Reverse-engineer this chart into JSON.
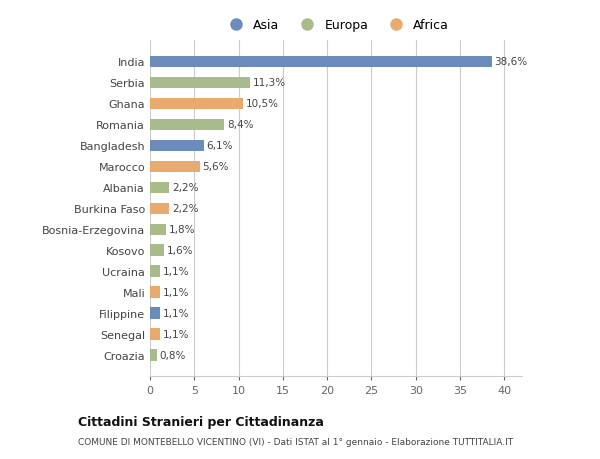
{
  "countries": [
    "Croazia",
    "Senegal",
    "Filippine",
    "Mali",
    "Ucraina",
    "Kosovo",
    "Bosnia-Erzegovina",
    "Burkina Faso",
    "Albania",
    "Marocco",
    "Bangladesh",
    "Romania",
    "Ghana",
    "Serbia",
    "India"
  ],
  "values": [
    0.8,
    1.1,
    1.1,
    1.1,
    1.1,
    1.6,
    1.8,
    2.2,
    2.2,
    5.6,
    6.1,
    8.4,
    10.5,
    11.3,
    38.6
  ],
  "labels": [
    "0,8%",
    "1,1%",
    "1,1%",
    "1,1%",
    "1,1%",
    "1,6%",
    "1,8%",
    "2,2%",
    "2,2%",
    "5,6%",
    "6,1%",
    "8,4%",
    "10,5%",
    "11,3%",
    "38,6%"
  ],
  "continents": [
    "Europa",
    "Africa",
    "Asia",
    "Africa",
    "Europa",
    "Europa",
    "Europa",
    "Africa",
    "Europa",
    "Africa",
    "Asia",
    "Europa",
    "Africa",
    "Europa",
    "Asia"
  ],
  "colors": {
    "Asia": "#6b8cba",
    "Europa": "#a8bb8a",
    "Africa": "#e8aa6e"
  },
  "legend": [
    "Asia",
    "Europa",
    "Africa"
  ],
  "legend_colors": [
    "#6b8cba",
    "#a8bb8a",
    "#e8aa6e"
  ],
  "title": "Cittadini Stranieri per Cittadinanza",
  "subtitle": "COMUNE DI MONTEBELLO VICENTINO (VI) - Dati ISTAT al 1° gennaio - Elaborazione TUTTITALIA.IT",
  "xlim": [
    0,
    42
  ],
  "xticks": [
    0,
    5,
    10,
    15,
    20,
    25,
    30,
    35,
    40
  ],
  "bg_color": "#ffffff",
  "bar_height": 0.55,
  "grid_color": "#cccccc"
}
